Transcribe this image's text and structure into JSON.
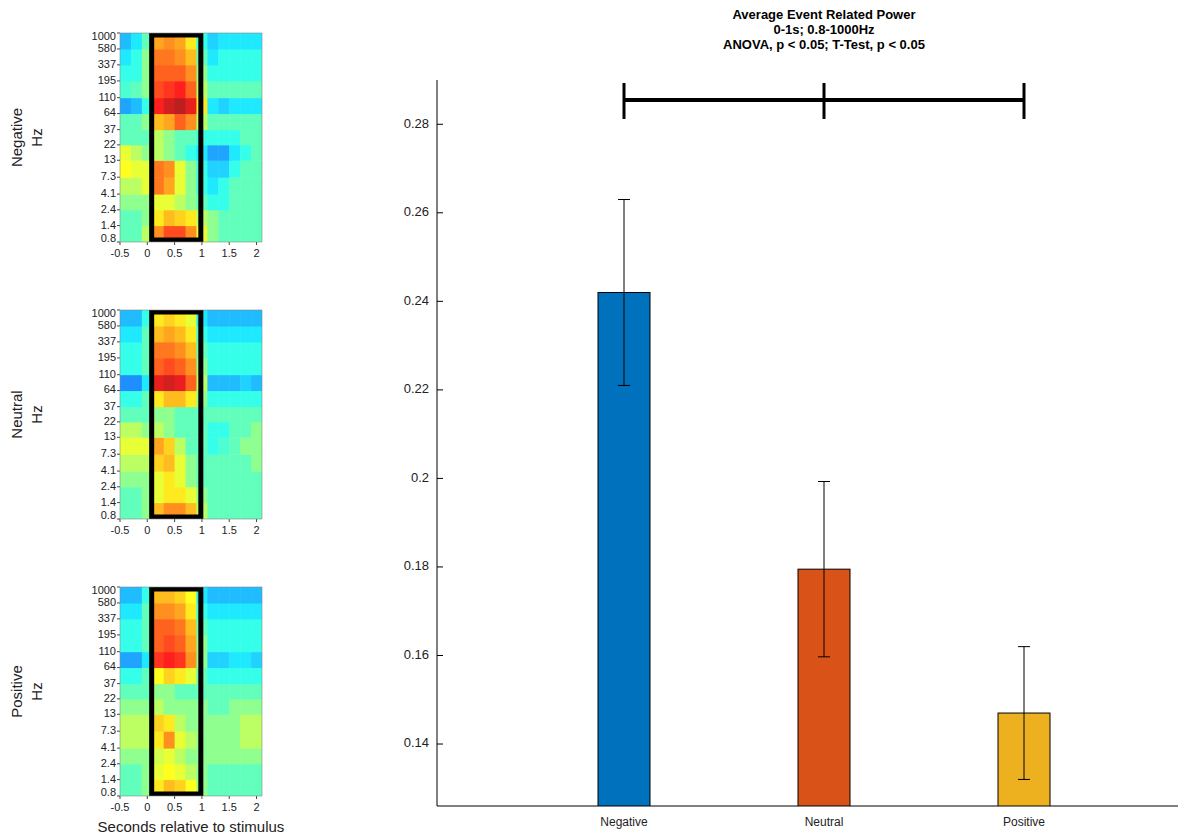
{
  "chart_data": [
    {
      "type": "heatmap",
      "title": "Negative",
      "ylabel": "Hz",
      "log": "y",
      "xlim": [
        -0.5,
        2.1
      ],
      "xticks": [
        -0.5,
        0,
        0.5,
        1,
        1.5,
        2
      ],
      "ylim": [
        0.8,
        1000
      ],
      "yticks": [
        0.8,
        1.4,
        2.4,
        4.1,
        7.3,
        13,
        22,
        37,
        64,
        110,
        195,
        337,
        580,
        1000
      ],
      "x_bins": [
        -0.5,
        -0.3,
        -0.1,
        0.1,
        0.3,
        0.5,
        0.7,
        0.9,
        1.1,
        1.3,
        1.5,
        1.7,
        1.9,
        2.1
      ],
      "y_bins": [
        0.8,
        1.4,
        2.4,
        4.1,
        7.3,
        13,
        22,
        37,
        64,
        110,
        195,
        337,
        580,
        1000
      ],
      "color_range": [
        -1,
        1
      ],
      "window": [
        0.08,
        0.98
      ],
      "cells": [
        [
          -0.1,
          -0.1,
          0.1,
          0.5,
          0.65,
          0.65,
          0.5,
          0.2,
          0,
          -0.1,
          -0.1,
          -0.1,
          -0.1
        ],
        [
          -0.1,
          -0.1,
          0,
          0.3,
          0.4,
          0.35,
          0.3,
          0.1,
          0,
          -0.1,
          -0.1,
          -0.1,
          -0.1
        ],
        [
          0,
          0,
          0,
          0.2,
          0.2,
          0.1,
          0,
          -0.1,
          -0.2,
          -0.2,
          -0.1,
          -0.1,
          -0.1
        ],
        [
          0.1,
          0.1,
          0.2,
          0.55,
          0.45,
          0.2,
          0,
          -0.2,
          -0.3,
          -0.2,
          -0.1,
          -0.1,
          -0.1
        ],
        [
          0.25,
          0.2,
          0.2,
          0.55,
          0.5,
          0.2,
          0,
          -0.2,
          -0.35,
          -0.35,
          -0.2,
          -0.1,
          -0.1
        ],
        [
          0.2,
          0.1,
          0,
          0.1,
          0,
          -0.1,
          -0.2,
          -0.3,
          -0.45,
          -0.45,
          -0.3,
          -0.2,
          -0.1
        ],
        [
          -0.1,
          -0.1,
          -0.1,
          0.1,
          0,
          -0.1,
          -0.1,
          -0.2,
          -0.2,
          -0.2,
          -0.2,
          -0.1,
          -0.1
        ],
        [
          -0.1,
          -0.1,
          0,
          0.4,
          0.45,
          0.6,
          0.5,
          0.1,
          -0.1,
          -0.1,
          -0.1,
          -0.1,
          -0.1
        ],
        [
          -0.45,
          -0.4,
          -0.2,
          0.75,
          0.85,
          0.9,
          0.8,
          0.3,
          -0.3,
          -0.35,
          -0.3,
          -0.3,
          -0.3
        ],
        [
          -0.15,
          -0.1,
          0,
          0.65,
          0.7,
          0.75,
          0.6,
          0.1,
          -0.1,
          -0.1,
          -0.1,
          -0.1,
          -0.1
        ],
        [
          -0.2,
          -0.2,
          0,
          0.6,
          0.6,
          0.6,
          0.5,
          0,
          -0.2,
          -0.2,
          -0.2,
          -0.2,
          -0.2
        ],
        [
          -0.3,
          -0.2,
          0,
          0.55,
          0.55,
          0.5,
          0.4,
          -0.1,
          -0.3,
          -0.2,
          -0.2,
          -0.2,
          -0.2
        ],
        [
          -0.4,
          -0.3,
          -0.1,
          0.45,
          0.5,
          0.45,
          0.3,
          -0.2,
          -0.35,
          -0.3,
          -0.3,
          -0.3,
          -0.3
        ]
      ]
    },
    {
      "type": "heatmap",
      "title": "Neutral",
      "ylabel": "Hz",
      "log": "y",
      "xlim": [
        -0.5,
        2.1
      ],
      "xticks": [
        -0.5,
        0,
        0.5,
        1,
        1.5,
        2
      ],
      "ylim": [
        0.8,
        1000
      ],
      "yticks": [
        0.8,
        1.4,
        2.4,
        4.1,
        7.3,
        13,
        22,
        37,
        64,
        110,
        195,
        337,
        580,
        1000
      ],
      "x_bins": [
        -0.5,
        -0.3,
        -0.1,
        0.1,
        0.3,
        0.5,
        0.7,
        0.9,
        1.1,
        1.3,
        1.5,
        1.7,
        1.9,
        2.1
      ],
      "y_bins": [
        0.8,
        1.4,
        2.4,
        4.1,
        7.3,
        13,
        22,
        37,
        64,
        110,
        195,
        337,
        580,
        1000
      ],
      "color_range": [
        -1,
        1
      ],
      "window": [
        0.08,
        0.98
      ],
      "cells": [
        [
          -0.1,
          -0.1,
          0,
          0.4,
          0.5,
          0.5,
          0.4,
          0.1,
          -0.1,
          -0.1,
          -0.1,
          -0.1,
          -0.1
        ],
        [
          -0.1,
          -0.1,
          0,
          0.2,
          0.3,
          0.3,
          0.2,
          0,
          -0.1,
          -0.1,
          -0.1,
          -0.1,
          -0.1
        ],
        [
          0,
          0,
          0,
          0.2,
          0.3,
          0.2,
          0,
          -0.1,
          -0.1,
          -0.1,
          -0.1,
          -0.1,
          -0.1
        ],
        [
          0.1,
          0.1,
          0.1,
          0.35,
          0.4,
          0.2,
          0,
          -0.1,
          -0.1,
          -0.1,
          -0.1,
          -0.1,
          0
        ],
        [
          0.2,
          0.2,
          0.2,
          0.45,
          0.35,
          0.1,
          -0.1,
          -0.1,
          -0.2,
          -0.15,
          -0.1,
          0,
          0
        ],
        [
          0.1,
          0.1,
          0,
          0.1,
          0,
          -0.1,
          -0.1,
          -0.1,
          -0.2,
          -0.2,
          -0.1,
          -0.1,
          0
        ],
        [
          -0.1,
          -0.1,
          -0.1,
          0,
          0,
          -0.1,
          -0.1,
          -0.1,
          -0.1,
          -0.1,
          -0.1,
          -0.1,
          -0.1
        ],
        [
          -0.2,
          -0.2,
          -0.1,
          0.3,
          0.4,
          0.4,
          0.3,
          0,
          -0.2,
          -0.2,
          -0.2,
          -0.2,
          -0.2
        ],
        [
          -0.5,
          -0.5,
          -0.3,
          0.8,
          0.85,
          0.8,
          0.6,
          0.1,
          -0.4,
          -0.4,
          -0.4,
          -0.35,
          -0.4
        ],
        [
          -0.2,
          -0.2,
          -0.1,
          0.6,
          0.65,
          0.6,
          0.5,
          0,
          -0.2,
          -0.2,
          -0.2,
          -0.2,
          -0.2
        ],
        [
          -0.2,
          -0.2,
          -0.1,
          0.55,
          0.55,
          0.5,
          0.4,
          -0.1,
          -0.2,
          -0.2,
          -0.2,
          -0.2,
          -0.2
        ],
        [
          -0.3,
          -0.3,
          -0.1,
          0.4,
          0.45,
          0.4,
          0.3,
          -0.2,
          -0.3,
          -0.3,
          -0.3,
          -0.3,
          -0.3
        ],
        [
          -0.4,
          -0.4,
          -0.2,
          0.3,
          0.35,
          0.3,
          0.2,
          -0.3,
          -0.4,
          -0.4,
          -0.4,
          -0.4,
          -0.4
        ]
      ]
    },
    {
      "type": "heatmap",
      "title": "Positive",
      "ylabel": "Hz",
      "xlabel": "Seconds relative to stimulus",
      "log": "y",
      "xlim": [
        -0.5,
        2.1
      ],
      "xticks": [
        -0.5,
        0,
        0.5,
        1,
        1.5,
        2
      ],
      "ylim": [
        0.8,
        1000
      ],
      "yticks": [
        0.8,
        1.4,
        2.4,
        4.1,
        7.3,
        13,
        22,
        37,
        64,
        110,
        195,
        337,
        580,
        1000
      ],
      "x_bins": [
        -0.5,
        -0.3,
        -0.1,
        0.1,
        0.3,
        0.5,
        0.7,
        0.9,
        1.1,
        1.3,
        1.5,
        1.7,
        1.9,
        2.1
      ],
      "y_bins": [
        0.8,
        1.4,
        2.4,
        4.1,
        7.3,
        13,
        22,
        37,
        64,
        110,
        195,
        337,
        580,
        1000
      ],
      "color_range": [
        -1,
        1
      ],
      "window": [
        0.08,
        0.98
      ],
      "cells": [
        [
          -0.1,
          -0.1,
          0,
          0.3,
          0.4,
          0.35,
          0.25,
          0,
          -0.1,
          -0.1,
          -0.1,
          -0.1,
          -0.1
        ],
        [
          -0.1,
          -0.1,
          0,
          0.2,
          0.25,
          0.2,
          0.1,
          0,
          -0.1,
          -0.1,
          -0.1,
          -0.1,
          -0.1
        ],
        [
          0,
          0,
          0,
          0.15,
          0.2,
          0.1,
          0,
          0,
          0,
          0,
          0,
          0,
          0
        ],
        [
          0.1,
          0.1,
          0.1,
          0.3,
          0.5,
          0.2,
          0.1,
          0,
          0,
          0,
          0,
          0.1,
          0.1
        ],
        [
          0.1,
          0.1,
          0.1,
          0.35,
          0.3,
          0.1,
          0,
          0,
          0,
          0,
          0,
          0.1,
          0.1
        ],
        [
          0,
          0,
          0,
          0.1,
          0,
          0,
          0,
          0,
          -0.1,
          -0.1,
          0,
          0,
          0
        ],
        [
          -0.1,
          -0.1,
          -0.1,
          0,
          0,
          -0.1,
          -0.1,
          -0.1,
          -0.1,
          -0.1,
          -0.1,
          -0.1,
          -0.1
        ],
        [
          -0.2,
          -0.2,
          -0.1,
          0.25,
          0.35,
          0.3,
          0.2,
          -0.1,
          -0.2,
          -0.2,
          -0.2,
          -0.2,
          -0.2
        ],
        [
          -0.45,
          -0.45,
          -0.3,
          0.7,
          0.75,
          0.7,
          0.5,
          0,
          -0.35,
          -0.35,
          -0.3,
          -0.3,
          -0.35
        ],
        [
          -0.2,
          -0.2,
          -0.1,
          0.6,
          0.65,
          0.6,
          0.45,
          0,
          -0.2,
          -0.2,
          -0.2,
          -0.2,
          -0.2
        ],
        [
          -0.2,
          -0.2,
          -0.1,
          0.6,
          0.6,
          0.55,
          0.4,
          -0.1,
          -0.2,
          -0.2,
          -0.2,
          -0.2,
          -0.2
        ],
        [
          -0.3,
          -0.3,
          -0.1,
          0.5,
          0.5,
          0.45,
          0.3,
          -0.2,
          -0.3,
          -0.3,
          -0.3,
          -0.3,
          -0.3
        ],
        [
          -0.4,
          -0.4,
          -0.2,
          0.4,
          0.4,
          0.35,
          0.25,
          -0.3,
          -0.4,
          -0.4,
          -0.4,
          -0.4,
          -0.4
        ]
      ]
    },
    {
      "type": "bar",
      "title": "Average Event Related Power",
      "subtitle": "0-1s; 0.8-1000Hz",
      "annotation": "ANOVA, p < 0.05; T-Test, p < 0.05",
      "categories": [
        "Negative",
        "Neutral",
        "Positive"
      ],
      "values": [
        0.242,
        0.1795,
        0.147
      ],
      "errors": [
        0.021,
        0.0198,
        0.015
      ],
      "colors": [
        "#0072bd",
        "#d95319",
        "#edb120"
      ],
      "ylim": [
        0.126,
        0.29
      ],
      "yticks": [
        0.14,
        0.16,
        0.18,
        0.2,
        0.22,
        0.24,
        0.26,
        0.28
      ],
      "grid": false
    }
  ]
}
